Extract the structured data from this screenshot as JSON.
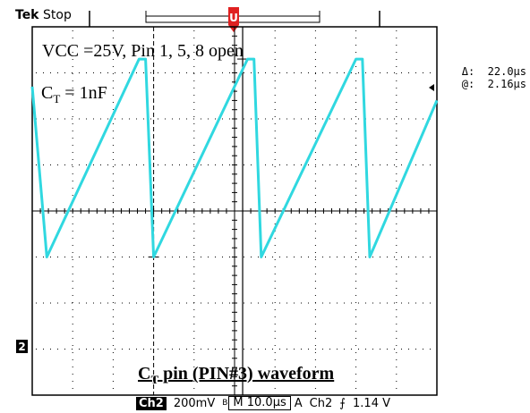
{
  "app": {
    "brand": "Tek",
    "status": "Stop"
  },
  "readouts": {
    "delta_label": "Δ:",
    "delta_value": "22.0µs",
    "at_label": "@:",
    "at_value": "2.16µs"
  },
  "annotations": {
    "condition": "VCC =25V, Pin 1, 5, 8 open",
    "ct_prefix": "C",
    "ct_sub": "T",
    "ct_suffix": " = 1nF",
    "caption_prefix": "C",
    "caption_sub": "T",
    "caption_suffix": " pin (PIN#3) waveform"
  },
  "channel_marker": "2",
  "trigger_marker": "U",
  "bottom": {
    "channel": "Ch2",
    "volts_div": "200mV",
    "bw_mark": "B",
    "timebase": "M 10.0µs",
    "trigger_mode": "A",
    "trigger_source": "Ch2",
    "trigger_slope": "⨍",
    "trigger_level": "1.14 V"
  },
  "colors": {
    "trace": "#30d8e0",
    "grid": "#000000",
    "background": "#ffffff"
  },
  "chart_data": {
    "type": "line",
    "title": "",
    "xlabel": "",
    "ylabel": "",
    "grid": true,
    "xlim": [
      0,
      100
    ],
    "ylim": [
      -4,
      4
    ],
    "x_unit_per_div": "10.0µs",
    "y_unit_per_div": "200mV",
    "series": [
      {
        "values_x": [
          0,
          3.6,
          26.4,
          28.0,
          30.0,
          53.2,
          54.8,
          56.6,
          80.0,
          81.6,
          83.4,
          100
        ],
        "values_y": [
          2.7,
          -1.0,
          3.3,
          3.3,
          -1.0,
          3.3,
          3.3,
          -1.0,
          3.3,
          3.3,
          -1.0,
          2.4
        ]
      }
    ],
    "cursors": {
      "horizontal_delta": "22.0µs",
      "position": "2.16µs"
    }
  }
}
